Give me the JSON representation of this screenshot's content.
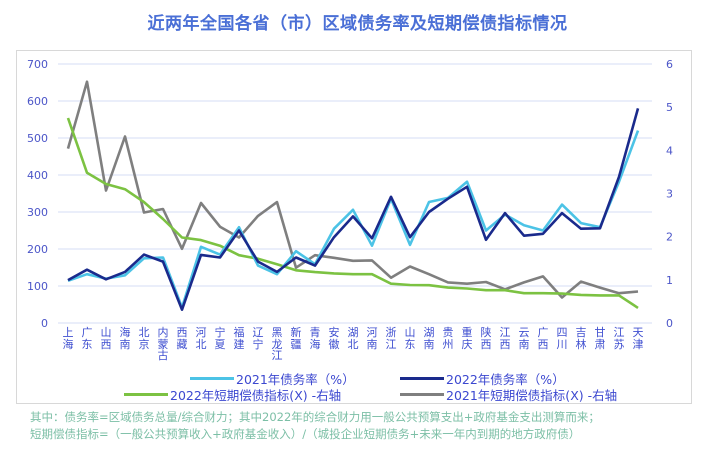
{
  "title": "近两年全国各省（市）区域债务率及短期偿债指标情况",
  "chart_data": {
    "type": "line",
    "title": "近两年全国各省（市）区域债务率及短期偿债指标情况",
    "categories": [
      "上海",
      "广东",
      "山西",
      "海南",
      "北京",
      "内蒙古",
      "西藏",
      "河北",
      "宁夏",
      "福建",
      "辽宁",
      "黑龙江",
      "新疆",
      "青海",
      "安徽",
      "湖北",
      "河南",
      "浙江",
      "山东",
      "湖南",
      "贵州",
      "重庆",
      "陕西",
      "江西",
      "云南",
      "广西",
      "四川",
      "吉林",
      "甘肃",
      "江苏",
      "天津"
    ],
    "left_axis": {
      "ylim": [
        0,
        700
      ],
      "ticks": [
        "0",
        "100",
        "200",
        "300",
        "400",
        "500",
        "600",
        "700"
      ]
    },
    "right_axis": {
      "ylim": [
        0,
        6
      ],
      "ticks": [
        "0",
        "1",
        "2",
        "3",
        "4",
        "5",
        "6"
      ]
    },
    "grid": true,
    "legend_position": "bottom",
    "series": [
      {
        "name": "2021年债务率（%）",
        "axis": "left",
        "color": "#4cc3e6",
        "values": [
          114,
          132,
          120,
          129,
          175,
          177,
          42,
          206,
          185,
          259,
          155,
          132,
          194,
          159,
          255,
          306,
          209,
          336,
          211,
          327,
          338,
          382,
          250,
          293,
          264,
          250,
          320,
          270,
          259,
          382,
          520
        ]
      },
      {
        "name": "2022年债务率（%）",
        "axis": "left",
        "color": "#1a2a8c",
        "values": [
          116,
          144,
          118,
          138,
          185,
          166,
          36,
          184,
          177,
          250,
          166,
          138,
          177,
          155,
          232,
          288,
          229,
          341,
          232,
          300,
          336,
          368,
          225,
          297,
          236,
          241,
          297,
          255,
          256,
          395,
          580
        ]
      },
      {
        "name": "2022年短期偿债指标(X) -右轴",
        "axis": "right",
        "color": "#7cc242",
        "values": [
          4.75,
          3.48,
          3.22,
          3.1,
          2.8,
          2.41,
          1.98,
          1.92,
          1.79,
          1.57,
          1.49,
          1.36,
          1.22,
          1.18,
          1.15,
          1.13,
          1.13,
          0.91,
          0.88,
          0.875,
          0.82,
          0.8,
          0.76,
          0.76,
          0.69,
          0.69,
          0.68,
          0.65,
          0.64,
          0.64,
          0.35
        ]
      },
      {
        "name": "2021年短期偿债指标(X) -右轴",
        "axis": "right",
        "color": "#7f7f7f",
        "values": [
          4.04,
          5.59,
          3.07,
          4.32,
          2.56,
          2.64,
          1.72,
          2.78,
          2.23,
          1.98,
          2.48,
          2.8,
          1.28,
          1.57,
          1.51,
          1.44,
          1.45,
          1.05,
          1.31,
          1.13,
          0.94,
          0.91,
          0.95,
          0.78,
          0.94,
          1.08,
          0.59,
          0.96,
          0.82,
          0.69,
          0.73
        ]
      }
    ]
  },
  "legend": [
    "2021年债务率（%）",
    "2022年债务率（%）",
    "2022年短期偿债指标(X)  -右轴",
    "2021年短期偿债指标(X)  -右轴"
  ],
  "notes": [
    "其中：债务率=区域债务总量/综合财力；其中2022年的综合财力用一般公共预算支出+政府基金支出测算而来；",
    "短期偿债指标=（一般公共预算收入+政府基金收入）/（城投企业短期债务+未来一年内到期的地方政府债）"
  ]
}
